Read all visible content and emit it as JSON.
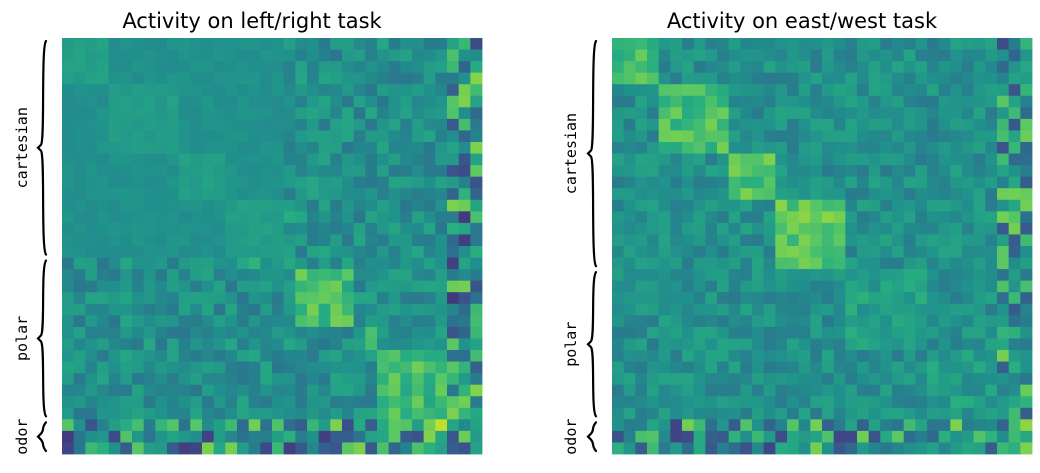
{
  "chart_data": [
    {
      "type": "heatmap",
      "title": "Activity on left/right task",
      "grid": false,
      "colormap": "viridis",
      "size": [
        36,
        36
      ],
      "groups": [
        {
          "label": "cartesian",
          "start": 0,
          "end": 19
        },
        {
          "label": "polar",
          "start": 19,
          "end": 33
        },
        {
          "label": "odor",
          "start": 33,
          "end": 36
        }
      ],
      "blocks": [
        {
          "start": 0,
          "end": 4,
          "level": 0.56
        },
        {
          "start": 4,
          "end": 10,
          "level": 0.55
        },
        {
          "start": 10,
          "end": 14,
          "level": 0.56
        },
        {
          "start": 14,
          "end": 20,
          "level": 0.56
        },
        {
          "start": 20,
          "end": 25,
          "level": 0.7
        },
        {
          "start": 25,
          "end": 27,
          "level": 0.62
        },
        {
          "start": 27,
          "end": 34,
          "level": 0.68
        }
      ],
      "background_level": 0.5,
      "noisy_from": 19,
      "noise": 0.1,
      "edge_cols": 3,
      "seed": 7
    },
    {
      "type": "heatmap",
      "title": "Activity on east/west task",
      "grid": false,
      "colormap": "viridis",
      "size": [
        36,
        36
      ],
      "groups": [
        {
          "label": "cartesian",
          "start": 0,
          "end": 20
        },
        {
          "label": "polar",
          "start": 20,
          "end": 33
        },
        {
          "label": "odor",
          "start": 33,
          "end": 36
        }
      ],
      "blocks": [
        {
          "start": 0,
          "end": 4,
          "level": 0.7
        },
        {
          "start": 4,
          "end": 10,
          "level": 0.7
        },
        {
          "start": 10,
          "end": 14,
          "level": 0.72
        },
        {
          "start": 14,
          "end": 20,
          "level": 0.74
        },
        {
          "start": 20,
          "end": 27,
          "level": 0.56
        },
        {
          "start": 27,
          "end": 36,
          "level": 0.55
        }
      ],
      "background_level": 0.5,
      "noisy_from": 0,
      "noise": 0.09,
      "edge_cols": 3,
      "seed": 11
    }
  ]
}
